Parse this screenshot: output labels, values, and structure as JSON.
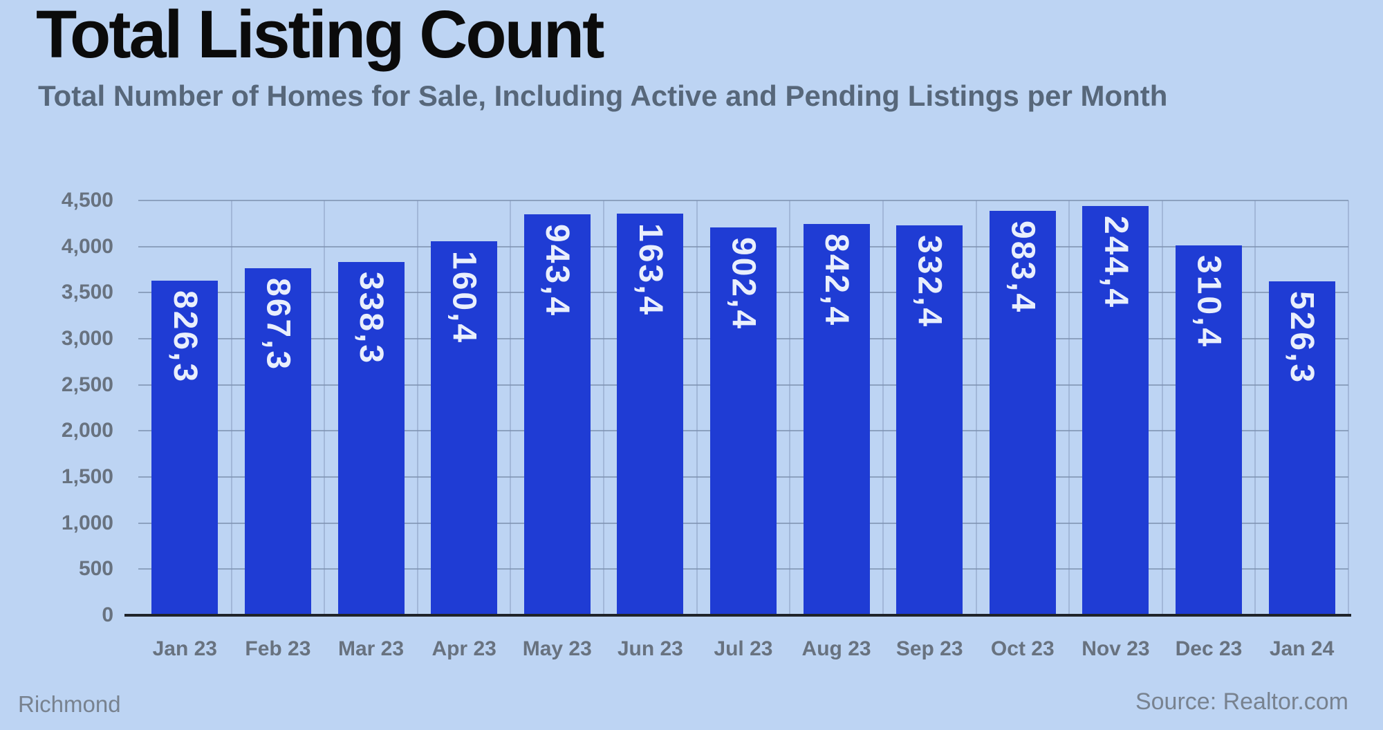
{
  "header": {
    "title": "Total Listing Count",
    "subtitle": "Total Number of Homes for Sale, Including Active and Pending Listings per Month"
  },
  "footer": {
    "location": "Richmond",
    "source": "Source: Realtor.com"
  },
  "chart_data": {
    "type": "bar",
    "title": "Total Listing Count",
    "subtitle": "Total Number of Homes for Sale, Including Active and Pending Listings per Month",
    "categories": [
      "Jan 23",
      "Feb 23",
      "Mar 23",
      "Apr 23",
      "May 23",
      "Jun 23",
      "Jul 23",
      "Aug 23",
      "Sep 23",
      "Oct 23",
      "Nov 23",
      "Dec 23",
      "Jan 24"
    ],
    "values": [
      3628,
      3768,
      3833,
      4061,
      4349,
      4361,
      4209,
      4248,
      4233,
      4389,
      4442,
      4013,
      3625
    ],
    "value_labels": [
      "3,628",
      "3,768",
      "3,833",
      "4,061",
      "4,349",
      "4,361",
      "4,209",
      "4,248",
      "4,233",
      "4,389",
      "4,442",
      "4,013",
      "3,625"
    ],
    "y_ticks": [
      0,
      500,
      1000,
      1500,
      2000,
      2500,
      3000,
      3500,
      4000,
      4500
    ],
    "y_tick_labels": [
      "0",
      "500",
      "1,000",
      "1,500",
      "2,000",
      "2,500",
      "3,000",
      "3,500",
      "4,000",
      "4,500"
    ],
    "ylim": [
      0,
      4500
    ],
    "xlabel": "",
    "ylabel": "",
    "grid": true,
    "legend": "none",
    "value_label_orientation": "vertical-bottom-to-top",
    "bar_color": "#1f3cd4",
    "background_color": "#bdd4f3",
    "bar_label_color": "#e9effc",
    "axis_label_color": "#68727f",
    "axis_line_color": "#20242a"
  }
}
